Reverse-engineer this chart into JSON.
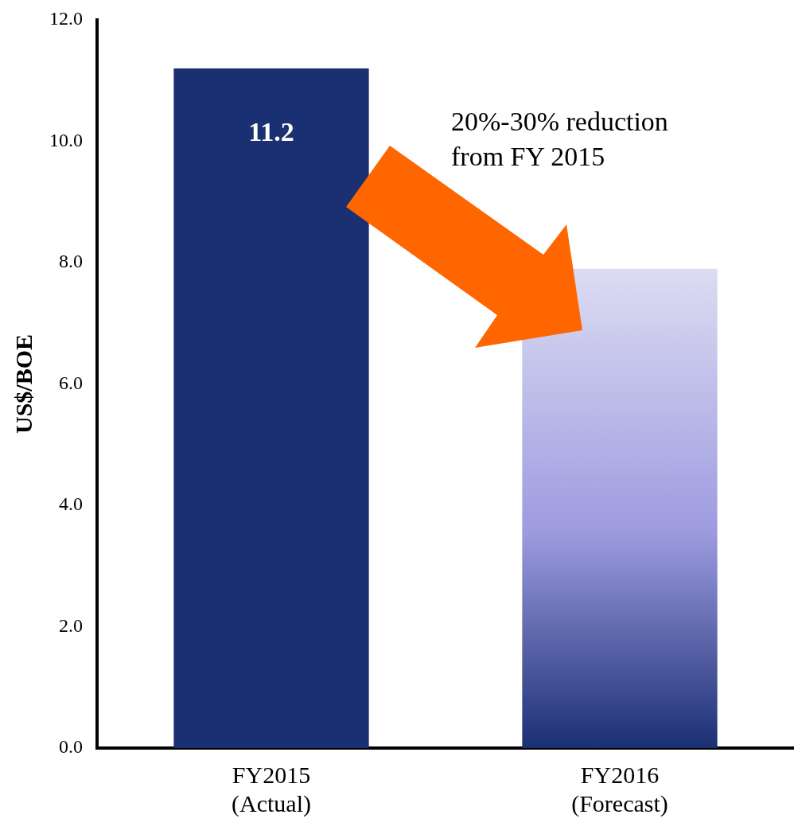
{
  "chart_data": {
    "type": "bar",
    "categories": [
      "FY2015\n(Actual)",
      "FY2016\n(Forecast)"
    ],
    "values": [
      11.2,
      7.9
    ],
    "colors": [
      "#1b2f73",
      "#9d9be0"
    ],
    "value_labels": [
      "11.2",
      null
    ],
    "ylabel": "US$/BOE",
    "ylim": [
      0,
      12
    ],
    "yticks": [
      {
        "value": 0,
        "label": "0.0"
      },
      {
        "value": 2,
        "label": "2.0"
      },
      {
        "value": 4,
        "label": "4.0"
      },
      {
        "value": 6,
        "label": "6.0"
      },
      {
        "value": 8,
        "label": "8.0"
      },
      {
        "value": 10,
        "label": "10.0"
      },
      {
        "value": 12,
        "label": "12.0"
      }
    ],
    "grid": false,
    "legend": false,
    "annotations": [
      "20%-30% reduction\nfrom FY 2015"
    ]
  }
}
